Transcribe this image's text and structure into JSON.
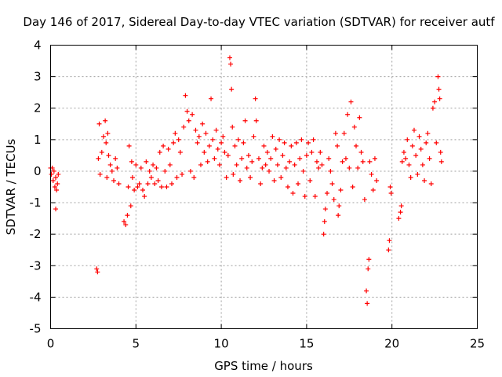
{
  "chart_data": {
    "type": "scatter",
    "title": "Day 146 of 2017, Sidereal Day-to-day VTEC variation (SDTVAR) for receiver autf",
    "xlabel": "GPS time / hours",
    "ylabel": "SDTVAR / TECUs",
    "xlim": [
      0,
      25
    ],
    "ylim": [
      -5,
      4
    ],
    "xticks": [
      "0",
      "5",
      "10",
      "15",
      "20",
      "25"
    ],
    "yticks": [
      "-5",
      "-4",
      "-3",
      "-2",
      "-1",
      "0",
      "1",
      "2",
      "3",
      "4"
    ],
    "grid": true,
    "marker": "+",
    "color": "#ff0000",
    "series": [
      {
        "name": "SDTVAR",
        "points": [
          [
            0.0,
            0.1
          ],
          [
            0.05,
            -0.1
          ],
          [
            0.1,
            0.1
          ],
          [
            0.15,
            -0.3
          ],
          [
            0.2,
            0.0
          ],
          [
            0.25,
            -0.5
          ],
          [
            0.3,
            -0.2
          ],
          [
            0.35,
            -0.6
          ],
          [
            0.3,
            -1.2
          ],
          [
            0.4,
            -0.4
          ],
          [
            0.45,
            -0.1
          ],
          [
            2.7,
            -3.1
          ],
          [
            2.75,
            -3.2
          ],
          [
            2.8,
            0.4
          ],
          [
            2.85,
            1.5
          ],
          [
            2.9,
            -0.1
          ],
          [
            3.0,
            0.6
          ],
          [
            3.1,
            1.1
          ],
          [
            3.2,
            1.6
          ],
          [
            3.25,
            0.9
          ],
          [
            3.3,
            -0.2
          ],
          [
            3.35,
            1.2
          ],
          [
            3.4,
            0.5
          ],
          [
            3.5,
            0.2
          ],
          [
            3.6,
            0.0
          ],
          [
            3.7,
            -0.3
          ],
          [
            3.8,
            0.4
          ],
          [
            3.9,
            0.1
          ],
          [
            4.0,
            -0.4
          ],
          [
            4.3,
            -1.6
          ],
          [
            4.4,
            -1.7
          ],
          [
            4.5,
            -1.4
          ],
          [
            4.55,
            -0.5
          ],
          [
            4.6,
            0.8
          ],
          [
            4.7,
            -1.1
          ],
          [
            4.75,
            0.3
          ],
          [
            4.8,
            -0.2
          ],
          [
            4.9,
            -0.6
          ],
          [
            5.0,
            0.2
          ],
          [
            5.1,
            -0.5
          ],
          [
            5.2,
            -0.4
          ],
          [
            5.3,
            0.1
          ],
          [
            5.4,
            -0.6
          ],
          [
            5.5,
            -0.8
          ],
          [
            5.6,
            0.3
          ],
          [
            5.7,
            -0.4
          ],
          [
            5.8,
            0.0
          ],
          [
            5.9,
            -0.2
          ],
          [
            6.0,
            0.2
          ],
          [
            6.1,
            -0.4
          ],
          [
            6.2,
            0.1
          ],
          [
            6.3,
            -0.3
          ],
          [
            6.4,
            0.6
          ],
          [
            6.5,
            -0.5
          ],
          [
            6.6,
            0.8
          ],
          [
            6.7,
            0.0
          ],
          [
            6.8,
            -0.5
          ],
          [
            6.9,
            0.7
          ],
          [
            7.0,
            0.2
          ],
          [
            7.1,
            -0.4
          ],
          [
            7.2,
            0.9
          ],
          [
            7.3,
            1.2
          ],
          [
            7.4,
            -0.2
          ],
          [
            7.5,
            1.0
          ],
          [
            7.6,
            0.6
          ],
          [
            7.7,
            -0.1
          ],
          [
            7.8,
            1.4
          ],
          [
            7.9,
            2.4
          ],
          [
            8.0,
            1.9
          ],
          [
            8.1,
            1.6
          ],
          [
            8.2,
            0.0
          ],
          [
            8.3,
            1.8
          ],
          [
            8.4,
            -0.2
          ],
          [
            8.5,
            1.3
          ],
          [
            8.6,
            0.9
          ],
          [
            8.7,
            1.1
          ],
          [
            8.8,
            0.2
          ],
          [
            8.9,
            1.5
          ],
          [
            9.0,
            0.6
          ],
          [
            9.1,
            1.2
          ],
          [
            9.2,
            0.3
          ],
          [
            9.3,
            0.8
          ],
          [
            9.4,
            2.3
          ],
          [
            9.5,
            1.0
          ],
          [
            9.6,
            0.4
          ],
          [
            9.7,
            1.3
          ],
          [
            9.8,
            0.7
          ],
          [
            9.9,
            0.2
          ],
          [
            10.0,
            0.9
          ],
          [
            10.1,
            1.1
          ],
          [
            10.2,
            0.6
          ],
          [
            10.3,
            -0.2
          ],
          [
            10.4,
            0.5
          ],
          [
            10.5,
            3.6
          ],
          [
            10.55,
            3.4
          ],
          [
            10.6,
            2.6
          ],
          [
            10.65,
            1.4
          ],
          [
            10.7,
            -0.1
          ],
          [
            10.8,
            0.8
          ],
          [
            10.9,
            0.2
          ],
          [
            11.0,
            1.0
          ],
          [
            11.1,
            -0.3
          ],
          [
            11.2,
            0.4
          ],
          [
            11.3,
            0.9
          ],
          [
            11.4,
            1.6
          ],
          [
            11.5,
            0.1
          ],
          [
            11.6,
            0.5
          ],
          [
            11.7,
            -0.2
          ],
          [
            11.8,
            0.3
          ],
          [
            11.9,
            1.1
          ],
          [
            12.0,
            2.3
          ],
          [
            12.05,
            1.6
          ],
          [
            12.2,
            0.4
          ],
          [
            12.3,
            -0.4
          ],
          [
            12.4,
            0.1
          ],
          [
            12.5,
            0.8
          ],
          [
            12.6,
            0.2
          ],
          [
            12.7,
            0.6
          ],
          [
            12.8,
            0.0
          ],
          [
            12.9,
            0.4
          ],
          [
            13.0,
            1.1
          ],
          [
            13.1,
            -0.3
          ],
          [
            13.2,
            0.7
          ],
          [
            13.3,
            0.2
          ],
          [
            13.4,
            1.0
          ],
          [
            13.5,
            -0.2
          ],
          [
            13.6,
            0.5
          ],
          [
            13.7,
            0.9
          ],
          [
            13.8,
            0.1
          ],
          [
            13.9,
            -0.5
          ],
          [
            14.0,
            0.3
          ],
          [
            14.1,
            0.8
          ],
          [
            14.2,
            -0.7
          ],
          [
            14.3,
            0.2
          ],
          [
            14.4,
            0.9
          ],
          [
            14.5,
            -0.4
          ],
          [
            14.6,
            0.4
          ],
          [
            14.7,
            1.0
          ],
          [
            14.8,
            0.0
          ],
          [
            14.9,
            -0.8
          ],
          [
            15.0,
            0.5
          ],
          [
            15.1,
            0.9
          ],
          [
            15.2,
            -0.3
          ],
          [
            15.3,
            0.6
          ],
          [
            15.4,
            1.0
          ],
          [
            15.5,
            -0.8
          ],
          [
            15.6,
            0.3
          ],
          [
            15.7,
            0.1
          ],
          [
            15.8,
            0.6
          ],
          [
            15.9,
            0.2
          ],
          [
            16.0,
            -2.0
          ],
          [
            16.05,
            -1.6
          ],
          [
            16.1,
            -1.2
          ],
          [
            16.2,
            -0.7
          ],
          [
            16.3,
            0.4
          ],
          [
            16.4,
            0.0
          ],
          [
            16.5,
            -0.4
          ],
          [
            16.6,
            -0.9
          ],
          [
            16.7,
            1.2
          ],
          [
            16.8,
            0.8
          ],
          [
            16.85,
            -1.4
          ],
          [
            16.9,
            -1.1
          ],
          [
            17.0,
            -0.6
          ],
          [
            17.1,
            0.3
          ],
          [
            17.2,
            1.2
          ],
          [
            17.3,
            0.4
          ],
          [
            17.4,
            1.8
          ],
          [
            17.5,
            0.1
          ],
          [
            17.6,
            2.2
          ],
          [
            17.7,
            -0.5
          ],
          [
            17.8,
            1.4
          ],
          [
            17.9,
            0.8
          ],
          [
            18.0,
            0.1
          ],
          [
            18.1,
            1.7
          ],
          [
            18.2,
            0.6
          ],
          [
            18.3,
            0.3
          ],
          [
            18.4,
            -0.9
          ],
          [
            18.5,
            -3.8
          ],
          [
            18.55,
            -4.2
          ],
          [
            18.6,
            -3.1
          ],
          [
            18.65,
            -2.8
          ],
          [
            18.7,
            0.3
          ],
          [
            18.8,
            -0.1
          ],
          [
            18.9,
            -0.6
          ],
          [
            19.0,
            0.4
          ],
          [
            19.1,
            -0.3
          ],
          [
            19.8,
            -2.5
          ],
          [
            19.85,
            -2.2
          ],
          [
            19.9,
            -0.5
          ],
          [
            19.95,
            -0.7
          ],
          [
            20.4,
            -1.5
          ],
          [
            20.5,
            -1.3
          ],
          [
            20.55,
            -1.1
          ],
          [
            20.6,
            0.3
          ],
          [
            20.7,
            0.6
          ],
          [
            20.8,
            0.4
          ],
          [
            20.9,
            1.0
          ],
          [
            21.0,
            0.2
          ],
          [
            21.1,
            -0.2
          ],
          [
            21.2,
            0.8
          ],
          [
            21.3,
            1.3
          ],
          [
            21.4,
            0.5
          ],
          [
            21.5,
            -0.1
          ],
          [
            21.6,
            1.1
          ],
          [
            21.7,
            0.7
          ],
          [
            21.8,
            0.2
          ],
          [
            21.9,
            -0.3
          ],
          [
            22.0,
            0.9
          ],
          [
            22.1,
            1.2
          ],
          [
            22.2,
            0.4
          ],
          [
            22.3,
            -0.4
          ],
          [
            22.4,
            2.0
          ],
          [
            22.5,
            2.2
          ],
          [
            22.6,
            0.9
          ],
          [
            22.7,
            3.0
          ],
          [
            22.75,
            2.6
          ],
          [
            22.8,
            2.3
          ],
          [
            22.85,
            0.6
          ],
          [
            22.9,
            0.3
          ]
        ]
      }
    ]
  }
}
